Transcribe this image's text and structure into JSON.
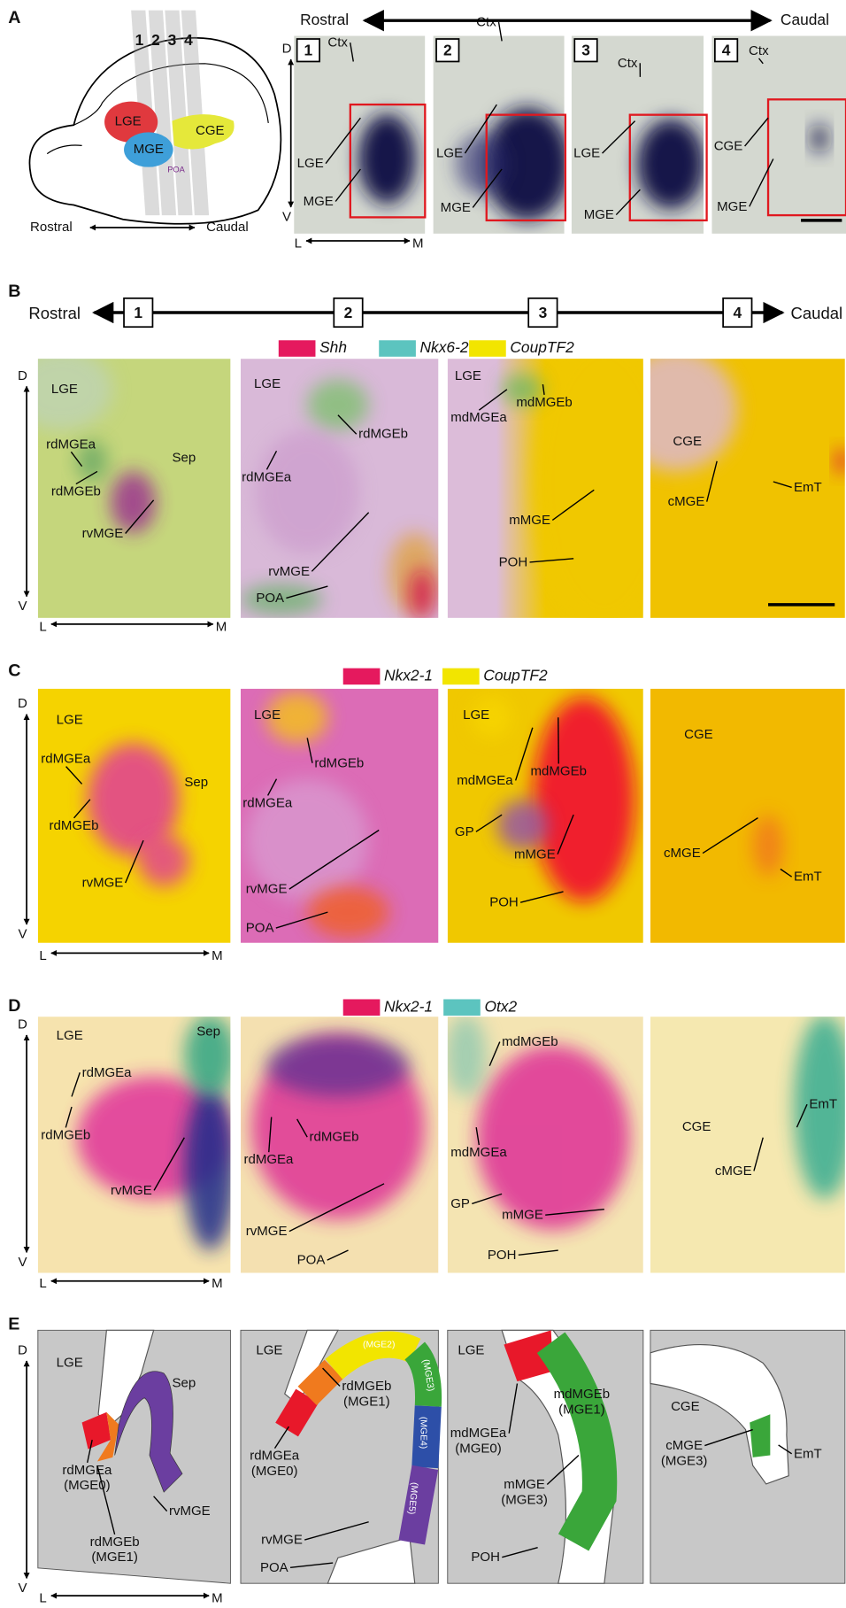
{
  "panels": [
    {
      "letter": "A",
      "schematic": {
        "sections": [
          "1",
          "2",
          "3",
          "4"
        ],
        "regions": [
          "LGE",
          "MGE",
          "CGE",
          "POA"
        ],
        "axis": [
          "Rostral",
          "Caudal"
        ]
      },
      "axis": [
        "Rostral",
        "Caudal"
      ],
      "dv": [
        "D",
        "V"
      ],
      "lm": [
        "L",
        "M"
      ],
      "images": [
        {
          "number": "1",
          "labels": [
            "Ctx",
            "LGE",
            "MGE"
          ]
        },
        {
          "number": "2",
          "labels": [
            "Ctx",
            "LGE",
            "MGE"
          ]
        },
        {
          "number": "3",
          "labels": [
            "Ctx",
            "LGE",
            "MGE"
          ]
        },
        {
          "number": "4",
          "labels": [
            "Ctx",
            "CGE",
            "MGE"
          ]
        }
      ]
    },
    {
      "letter": "B",
      "axis": [
        "Rostral",
        "Caudal"
      ],
      "levels": [
        "1",
        "2",
        "3",
        "4"
      ],
      "legend": [
        {
          "name": "Shh",
          "color": "#e5195e"
        },
        {
          "name": "Nkx6-2",
          "color": "#5cc4bf"
        },
        {
          "name": "CoupTF2",
          "color": "#f2e500"
        }
      ],
      "dv": [
        "D",
        "V"
      ],
      "lm": [
        "L",
        "M"
      ],
      "images": [
        {
          "labels": [
            "LGE",
            "rdMGEa",
            "Sep",
            "rdMGEb",
            "rvMGE"
          ]
        },
        {
          "labels": [
            "LGE",
            "rdMGEb",
            "rdMGEa",
            "rvMGE",
            "POA"
          ]
        },
        {
          "labels": [
            "LGE",
            "mdMGEa",
            "mdMGEb",
            "mMGE",
            "POH"
          ]
        },
        {
          "labels": [
            "CGE",
            "cMGE",
            "EmT"
          ]
        }
      ]
    },
    {
      "letter": "C",
      "legend": [
        {
          "name": "Nkx2-1",
          "color": "#e5195e"
        },
        {
          "name": "CoupTF2",
          "color": "#f2e500"
        }
      ],
      "dv": [
        "D",
        "V"
      ],
      "lm": [
        "L",
        "M"
      ],
      "images": [
        {
          "labels": [
            "LGE",
            "rdMGEa",
            "Sep",
            "rdMGEb",
            "rvMGE"
          ]
        },
        {
          "labels": [
            "LGE",
            "rdMGEb",
            "rdMGEa",
            "rvMGE",
            "POA"
          ]
        },
        {
          "labels": [
            "LGE",
            "mdMGEa",
            "mdMGEb",
            "GP",
            "mMGE",
            "POH"
          ]
        },
        {
          "labels": [
            "CGE",
            "cMGE",
            "EmT"
          ]
        }
      ]
    },
    {
      "letter": "D",
      "legend": [
        {
          "name": "Nkx2-1",
          "color": "#e5195e"
        },
        {
          "name": "Otx2",
          "color": "#5cc4bf"
        }
      ],
      "dv": [
        "D",
        "V"
      ],
      "lm": [
        "L",
        "M"
      ],
      "images": [
        {
          "labels": [
            "LGE",
            "rdMGEa",
            "Sep",
            "rdMGEb",
            "rvMGE"
          ]
        },
        {
          "labels": [
            "rdMGEb",
            "rdMGEa",
            "rvMGE",
            "POA"
          ]
        },
        {
          "labels": [
            "mdMGEb",
            "mdMGEa",
            "GP",
            "mMGE",
            "POH"
          ]
        },
        {
          "labels": [
            "CGE",
            "EmT",
            "cMGE"
          ]
        }
      ]
    },
    {
      "letter": "E",
      "dv": [
        "D",
        "V"
      ],
      "lm": [
        "L",
        "M"
      ],
      "images": [
        {
          "labels": [
            "LGE",
            "Sep",
            [
              "rdMGEa",
              "(MGE0)"
            ],
            [
              "rdMGEb",
              "(MGE1)"
            ],
            "rvMGE"
          ]
        },
        {
          "labels": [
            "LGE",
            "(MGE2)",
            "(MGE3)",
            "(MGE4)",
            "(MGE5)",
            [
              "rdMGEb",
              "(MGE1)"
            ],
            [
              "rdMGEa",
              "(MGE0)"
            ],
            "rvMGE",
            "POA"
          ]
        },
        {
          "labels": [
            "LGE",
            [
              "mdMGEb",
              "(MGE1)"
            ],
            [
              "mdMGEa",
              "(MGE0)"
            ],
            [
              "mMGE",
              "(MGE3)"
            ],
            "POH"
          ]
        },
        {
          "labels": [
            "CGE",
            [
              "cMGE",
              "(MGE3)"
            ],
            "EmT"
          ]
        }
      ]
    }
  ]
}
